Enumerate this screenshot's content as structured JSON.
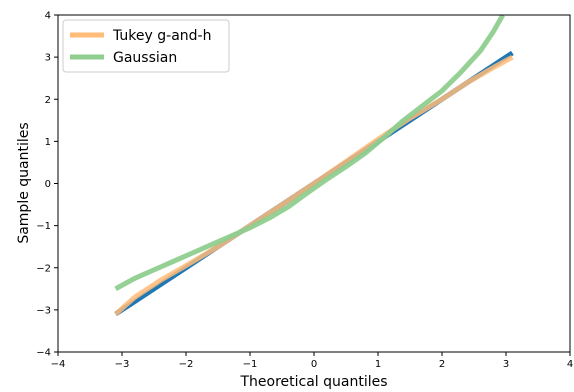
{
  "chart_data": {
    "type": "line",
    "title": "",
    "xlabel": "Theoretical quantiles",
    "ylabel": "Sample quantiles",
    "xlim": [
      -4,
      4
    ],
    "ylim": [
      -4,
      4
    ],
    "x_ticks": [
      -4,
      -3,
      -2,
      -1,
      0,
      1,
      2,
      3,
      4
    ],
    "y_ticks": [
      -4,
      -3,
      -2,
      -1,
      0,
      1,
      2,
      3,
      4
    ],
    "grid": false,
    "legend_position": "top-left",
    "reference_line": {
      "color": "#1f77b4",
      "x": [
        -3.1,
        3.1
      ],
      "y": [
        -3.1,
        3.1
      ]
    },
    "series": [
      {
        "name": "Tukey g-and-h",
        "color": "#ffbb78",
        "x": [
          -3.1,
          -2.8,
          -2.4,
          -2.0,
          -1.5,
          -1.0,
          -0.5,
          0.0,
          0.5,
          1.0,
          1.5,
          2.0,
          2.4,
          2.8,
          3.1
        ],
        "y": [
          -3.1,
          -2.7,
          -2.3,
          -1.95,
          -1.5,
          -1.0,
          -0.5,
          0.0,
          0.52,
          1.05,
          1.55,
          2.0,
          2.4,
          2.75,
          3.0
        ]
      },
      {
        "name": "Gaussian",
        "color": "#8fce8f",
        "x": [
          -3.1,
          -2.8,
          -2.5,
          -2.2,
          -1.9,
          -1.6,
          -1.3,
          -1.0,
          -0.7,
          -0.4,
          -0.1,
          0.2,
          0.5,
          0.8,
          1.1,
          1.4,
          1.7,
          2.0,
          2.3,
          2.6,
          2.8,
          2.95
        ],
        "y": [
          -2.5,
          -2.25,
          -2.05,
          -1.85,
          -1.65,
          -1.45,
          -1.25,
          -1.05,
          -0.82,
          -0.55,
          -0.22,
          0.1,
          0.4,
          0.72,
          1.1,
          1.5,
          1.85,
          2.2,
          2.65,
          3.15,
          3.6,
          4.0
        ]
      }
    ]
  }
}
